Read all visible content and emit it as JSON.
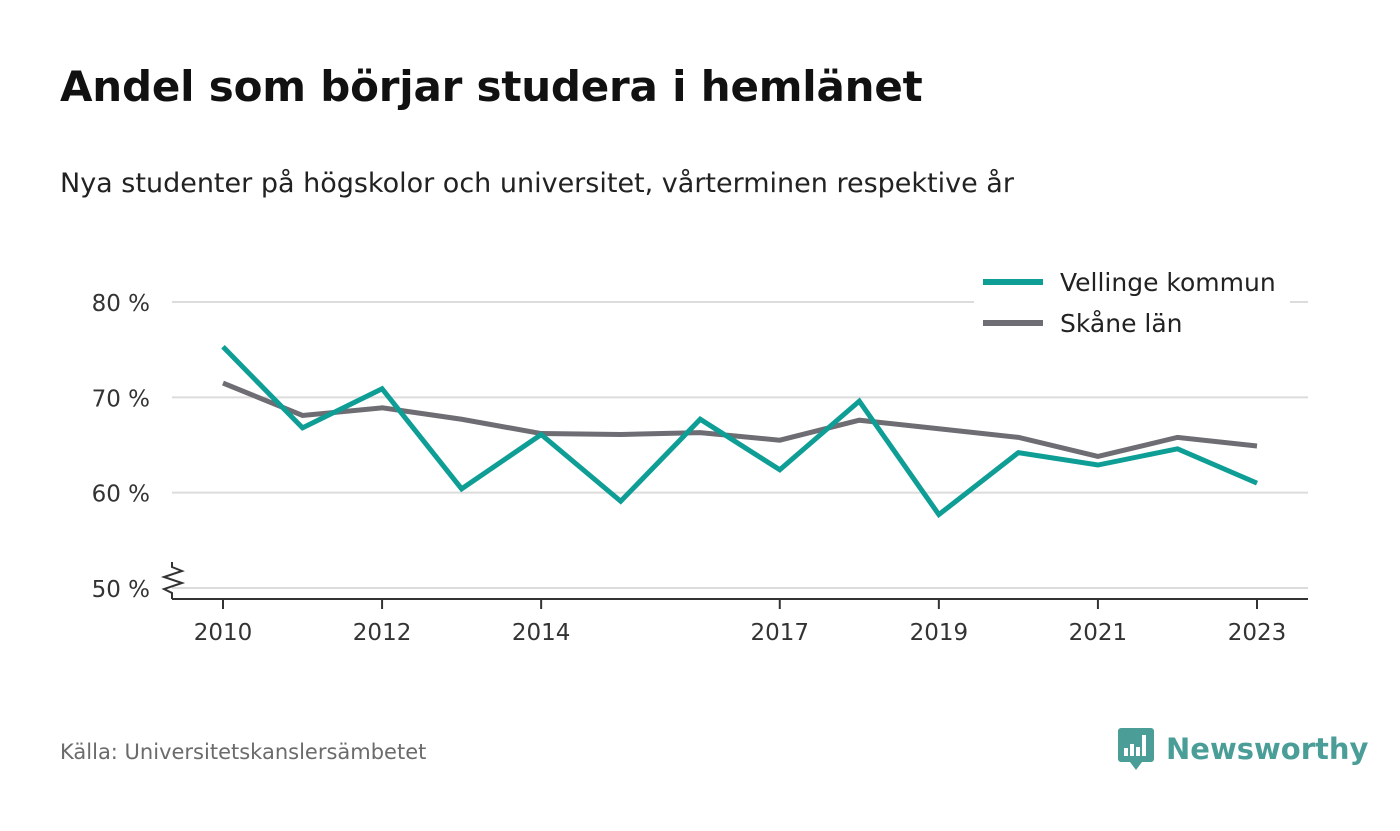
{
  "title": "Andel som börjar studera i hemlänet",
  "subtitle": "Nya studenter på högskolor och universitet, vårterminen respektive år",
  "source": "Källa: Universitetskanslersämbetet",
  "brand": {
    "name": "Newsworthy",
    "color": "#4a9e97",
    "icon": "newsworthy-logo-icon"
  },
  "chart_data": {
    "type": "line",
    "y_unit": " %",
    "ylim": [
      50,
      80
    ],
    "yticks": [
      50,
      60,
      70,
      80
    ],
    "ytick_labels": [
      "50 %",
      "60 %",
      "70 %",
      "80 %"
    ],
    "x": [
      2010,
      2011,
      2012,
      2013,
      2014,
      2015,
      2016,
      2017,
      2018,
      2019,
      2020,
      2021,
      2022,
      2023
    ],
    "xlim": [
      2010,
      2023
    ],
    "xticks": [
      2010,
      2012,
      2014,
      2017,
      2019,
      2021,
      2023
    ],
    "xtick_labels": [
      "2010",
      "2012",
      "2014",
      "2017",
      "2019",
      "2021",
      "2023"
    ],
    "y_axis_break": true,
    "grid": true,
    "legend_position": "top-right",
    "series": [
      {
        "name": "Vellinge kommun",
        "color": "#0e9e96",
        "values": [
          75.3,
          66.8,
          70.9,
          60.4,
          66.1,
          59.1,
          67.7,
          62.4,
          69.6,
          57.7,
          64.2,
          62.9,
          64.6,
          61.0
        ]
      },
      {
        "name": "Skåne län",
        "color": "#6e6d73",
        "values": [
          71.5,
          68.1,
          68.9,
          67.7,
          66.2,
          66.1,
          66.3,
          65.5,
          67.6,
          66.7,
          65.8,
          63.8,
          65.8,
          64.9
        ]
      }
    ]
  }
}
